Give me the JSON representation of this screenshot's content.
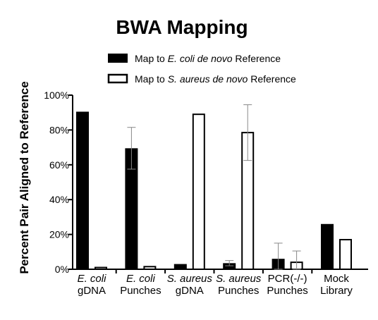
{
  "chart_data": {
    "type": "bar",
    "title": "BWA Mapping",
    "ylabel": "Percent Pair Aligned to Reference",
    "xlabel": "",
    "ylim": [
      0,
      100
    ],
    "yticks": [
      "0%",
      "20%",
      "40%",
      "60%",
      "80%",
      "100%"
    ],
    "grid": false,
    "legend_position": "top",
    "categories": [
      [
        {
          "text": "E. coli",
          "italic": true
        },
        {
          "text": "gDNA",
          "italic": false
        }
      ],
      [
        {
          "text": "E. coli",
          "italic": true
        },
        {
          "text": "Punches",
          "italic": false
        }
      ],
      [
        {
          "text": "S. aureus",
          "italic": true
        },
        {
          "text": "gDNA",
          "italic": false
        }
      ],
      [
        {
          "text": "S. aureus",
          "italic": true
        },
        {
          "text": "Punches",
          "italic": false
        }
      ],
      [
        {
          "text": "PCR(-/-)",
          "italic": false
        },
        {
          "text": "Punches",
          "italic": false
        }
      ],
      [
        {
          "text": "Mock",
          "italic": false
        },
        {
          "text": "Library",
          "italic": false
        }
      ]
    ],
    "series": [
      {
        "name_parts": [
          {
            "text": "Map to ",
            "italic": false
          },
          {
            "text": "E. coli de novo",
            "italic": true
          },
          {
            "text": " Reference",
            "italic": false
          }
        ],
        "fill": "#000000",
        "values": [
          90.5,
          69.5,
          3,
          3.5,
          6,
          26
        ],
        "error": [
          null,
          12,
          null,
          1.5,
          9,
          null
        ]
      },
      {
        "name_parts": [
          {
            "text": "Map to ",
            "italic": false
          },
          {
            "text": "S. aureus de novo",
            "italic": true
          },
          {
            "text": " Reference",
            "italic": false
          }
        ],
        "fill": "#ffffff",
        "values": [
          1,
          1.5,
          89,
          78.5,
          4,
          17
        ],
        "error": [
          null,
          null,
          null,
          16,
          6.5,
          null
        ]
      }
    ]
  }
}
